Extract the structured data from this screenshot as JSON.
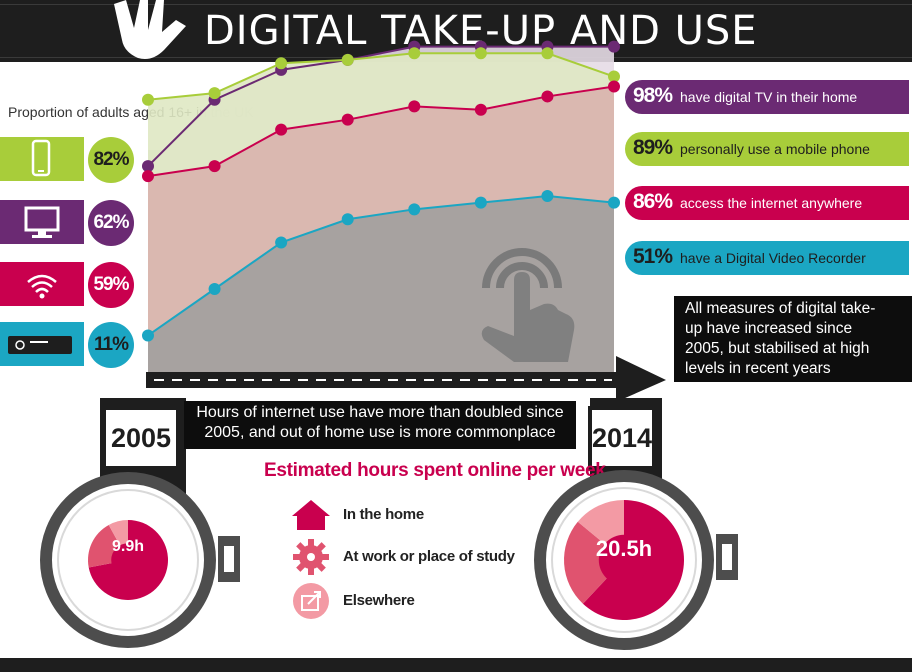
{
  "title": "DIGITAL TAKE-UP AND USE",
  "subtitle": "Proportion of adults aged 16+ in the UK",
  "colors": {
    "mobile": "#a8cd3a",
    "tv": "#6b2a73",
    "internet": "#c9004e",
    "dvr": "#1ba6c3",
    "dark": "#1e1e1e"
  },
  "start_values": [
    {
      "icon": "mobile-phone-icon",
      "value": "82%"
    },
    {
      "icon": "tv-icon",
      "value": "62%"
    },
    {
      "icon": "wifi-icon",
      "value": "59%"
    },
    {
      "icon": "dvr-icon",
      "value": "11%"
    }
  ],
  "end_values": [
    {
      "value": "98%",
      "label": "have digital TV in their home"
    },
    {
      "value": "89%",
      "label": "personally use a mobile phone"
    },
    {
      "value": "86%",
      "label": "access the internet anywhere"
    },
    {
      "value": "51%",
      "label": "have a Digital Video Recorder"
    }
  ],
  "take_up_note": [
    "All measures of digital take-",
    "up have increased since",
    "2005, but stabilised at high",
    "levels in recent years"
  ],
  "internet_note": [
    "Hours of internet use have more than doubled since",
    "2005, and out of home use is more commonplace"
  ],
  "years": {
    "start": "2005",
    "end": "2014"
  },
  "hours_title": "Estimated hours spent online per week",
  "legend": [
    {
      "icon": "house-icon",
      "label": "In the home"
    },
    {
      "icon": "gear-icon",
      "label": "At work or place of study"
    },
    {
      "icon": "share-icon",
      "label": "Elsewhere"
    }
  ],
  "chart_data": [
    {
      "type": "area",
      "title": "Proportion of adults aged 16+ in the UK",
      "x_start": "2005",
      "x_end": "2014",
      "ylim": [
        0,
        100
      ],
      "series": [
        {
          "values": [
            82,
            84,
            93,
            94,
            96,
            96,
            96,
            89
          ],
          "color": "#a8cd3a"
        },
        {
          "values": [
            62,
            82,
            91,
            94,
            98,
            98,
            98,
            98
          ],
          "color": "#6b2a73"
        },
        {
          "values": [
            59,
            62,
            73,
            76,
            80,
            79,
            83,
            86
          ],
          "color": "#c9004e"
        },
        {
          "values": [
            11,
            25,
            39,
            46,
            49,
            51,
            53,
            51
          ],
          "color": "#1ba6c3"
        }
      ]
    },
    {
      "type": "pie",
      "year": "2005",
      "total": "9.9h",
      "slices": [
        {
          "name": "In the home",
          "share": 0.72
        },
        {
          "name": "At work or place of study",
          "share": 0.2
        },
        {
          "name": "Elsewhere",
          "share": 0.08
        }
      ]
    },
    {
      "type": "pie",
      "year": "2014",
      "total": "20.5h",
      "slices": [
        {
          "name": "In the home",
          "share": 0.62
        },
        {
          "name": "At work or place of study",
          "share": 0.24
        },
        {
          "name": "Elsewhere",
          "share": 0.14
        }
      ]
    }
  ]
}
